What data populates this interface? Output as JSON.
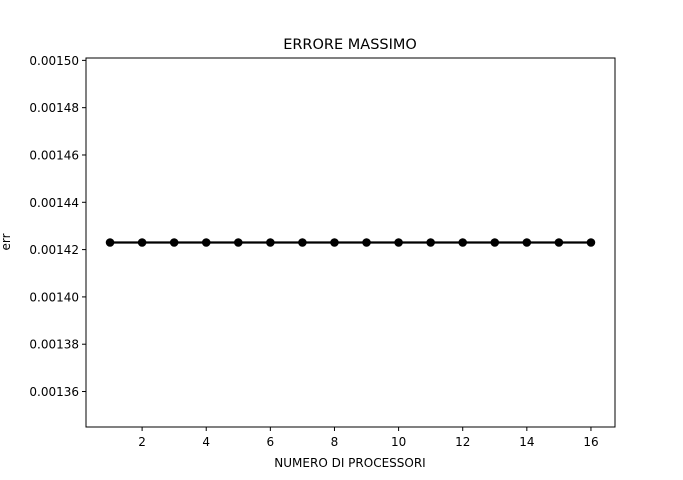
{
  "chart_data": {
    "type": "line",
    "title": "ERRORE MASSIMO",
    "xlabel": "NUMERO DI PROCESSORI",
    "ylabel": "err",
    "xlim": [
      0.25,
      16.75
    ],
    "ylim": [
      0.001345,
      0.001501
    ],
    "xticks": [
      2,
      4,
      6,
      8,
      10,
      12,
      14,
      16
    ],
    "xtick_labels": [
      "2",
      "4",
      "6",
      "8",
      "10",
      "12",
      "14",
      "16"
    ],
    "yticks": [
      0.00136,
      0.00138,
      0.0014,
      0.00142,
      0.00144,
      0.00146,
      0.00148,
      0.0015
    ],
    "ytick_labels": [
      "0.00136",
      "0.00138",
      "0.00140",
      "0.00142",
      "0.00144",
      "0.00146",
      "0.00148",
      "0.00150"
    ],
    "grid": false,
    "legend": "none",
    "series": [
      {
        "color": "#000000",
        "marker": "circle",
        "x": [
          1,
          2,
          3,
          4,
          5,
          6,
          7,
          8,
          9,
          10,
          11,
          12,
          13,
          14,
          15,
          16
        ],
        "y": [
          0.001423,
          0.001423,
          0.001423,
          0.001423,
          0.001423,
          0.001423,
          0.001423,
          0.001423,
          0.001423,
          0.001423,
          0.001423,
          0.001423,
          0.001423,
          0.001423,
          0.001423,
          0.001423
        ]
      }
    ]
  }
}
